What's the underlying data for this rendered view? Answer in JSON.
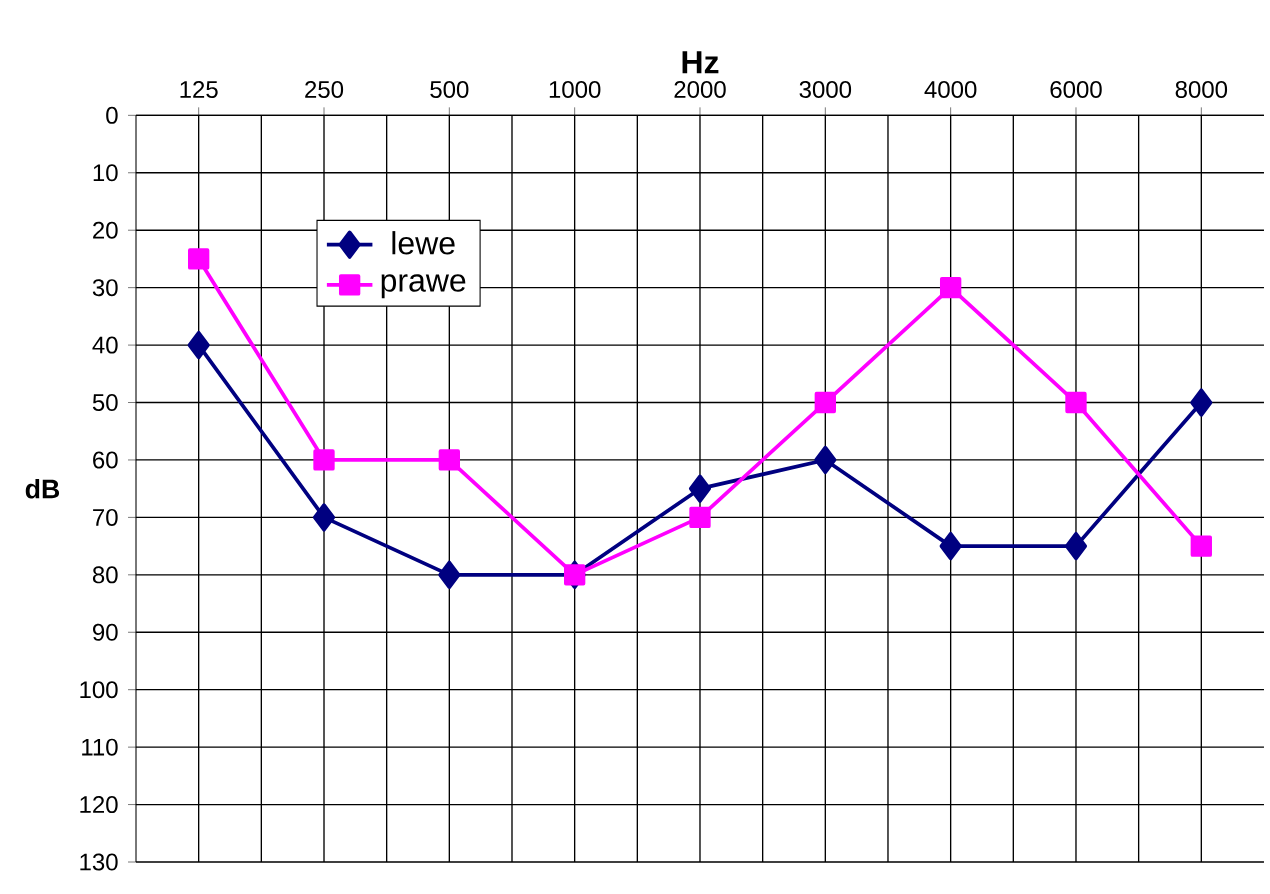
{
  "chart_data": {
    "type": "line",
    "xlabel": "Hz",
    "ylabel": "dB",
    "categories": [
      "125",
      "250",
      "500",
      "1000",
      "2000",
      "3000",
      "4000",
      "6000",
      "8000"
    ],
    "series": [
      {
        "name": "lewe",
        "color": "#000080",
        "marker": "diamond",
        "values": [
          40,
          70,
          80,
          80,
          65,
          60,
          75,
          75,
          50
        ]
      },
      {
        "name": "prawe",
        "color": "#ff00ff",
        "marker": "square",
        "values": [
          25,
          60,
          60,
          80,
          70,
          50,
          30,
          50,
          75
        ]
      }
    ],
    "ylim": [
      130,
      0
    ],
    "yticks": [
      0,
      10,
      20,
      30,
      40,
      50,
      60,
      70,
      80,
      90,
      100,
      110,
      120,
      130
    ],
    "grid": true,
    "legend": "top left"
  }
}
